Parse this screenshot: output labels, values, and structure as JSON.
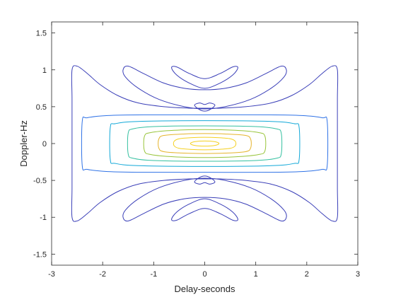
{
  "chart_data": {
    "type": "contour",
    "title": "",
    "xlabel": "Delay-seconds",
    "ylabel": "Doppler-Hz",
    "xlim": [
      -3,
      3
    ],
    "ylim": [
      -1.65,
      1.65
    ],
    "xticks": [
      -3,
      -2,
      -1,
      0,
      1,
      2,
      3
    ],
    "yticks": [
      -1.5,
      -1,
      -0.5,
      0,
      0.5,
      1,
      1.5
    ],
    "xtick_labels": [
      "-3",
      "-2",
      "-1",
      "0",
      "1",
      "2",
      "3"
    ],
    "ytick_labels": [
      "-1.5",
      "-1",
      "-0.5",
      "0",
      "0.5",
      "1",
      "1.5"
    ],
    "grid": false,
    "box": true,
    "colormap": "parula",
    "contours": [
      {
        "level": 1,
        "color": "#3a3fb8",
        "paths": [
          [
            [
              -2.6,
              1.0
            ],
            [
              -2.5,
              1.05
            ],
            [
              -2.3,
              0.95
            ],
            [
              -2.05,
              0.8
            ],
            [
              -1.7,
              0.65
            ],
            [
              -1.3,
              0.55
            ],
            [
              -0.8,
              0.5
            ],
            [
              -0.3,
              0.48
            ],
            [
              0,
              0.48
            ],
            [
              0.3,
              0.48
            ],
            [
              0.8,
              0.5
            ],
            [
              1.3,
              0.55
            ],
            [
              1.7,
              0.65
            ],
            [
              2.05,
              0.8
            ],
            [
              2.3,
              0.95
            ],
            [
              2.5,
              1.05
            ],
            [
              2.6,
              1.0
            ],
            [
              2.6,
              0.6
            ],
            [
              2.6,
              0
            ],
            [
              2.6,
              -0.6
            ],
            [
              2.6,
              -1.0
            ],
            [
              2.5,
              -1.05
            ],
            [
              2.3,
              -0.95
            ],
            [
              2.05,
              -0.8
            ],
            [
              1.7,
              -0.65
            ],
            [
              1.3,
              -0.55
            ],
            [
              0.8,
              -0.5
            ],
            [
              0.3,
              -0.48
            ],
            [
              0,
              -0.48
            ],
            [
              -0.3,
              -0.48
            ],
            [
              -0.8,
              -0.5
            ],
            [
              -1.3,
              -0.55
            ],
            [
              -1.7,
              -0.65
            ],
            [
              -2.05,
              -0.8
            ],
            [
              -2.3,
              -0.95
            ],
            [
              -2.5,
              -1.05
            ],
            [
              -2.6,
              -1.0
            ],
            [
              -2.6,
              -0.6
            ],
            [
              -2.6,
              0
            ],
            [
              -2.6,
              0.6
            ],
            [
              -2.6,
              1.0
            ]
          ],
          [
            [
              -1.6,
              1.0
            ],
            [
              -1.5,
              1.05
            ],
            [
              -1.2,
              0.95
            ],
            [
              -0.8,
              0.82
            ],
            [
              -0.4,
              0.75
            ],
            [
              0,
              0.73
            ],
            [
              0.4,
              0.75
            ],
            [
              0.8,
              0.82
            ],
            [
              1.2,
              0.95
            ],
            [
              1.5,
              1.05
            ],
            [
              1.6,
              1.0
            ],
            [
              1.55,
              0.9
            ],
            [
              1.3,
              0.75
            ],
            [
              0.9,
              0.6
            ],
            [
              0.4,
              0.5
            ],
            [
              0,
              0.47
            ],
            [
              -0.4,
              0.5
            ],
            [
              -0.9,
              0.6
            ],
            [
              -1.3,
              0.75
            ],
            [
              -1.55,
              0.9
            ],
            [
              -1.6,
              1.0
            ]
          ],
          [
            [
              -1.6,
              -1.0
            ],
            [
              -1.5,
              -1.05
            ],
            [
              -1.2,
              -0.95
            ],
            [
              -0.8,
              -0.82
            ],
            [
              -0.4,
              -0.75
            ],
            [
              0,
              -0.73
            ],
            [
              0.4,
              -0.75
            ],
            [
              0.8,
              -0.82
            ],
            [
              1.2,
              -0.95
            ],
            [
              1.5,
              -1.05
            ],
            [
              1.6,
              -1.0
            ],
            [
              1.55,
              -0.9
            ],
            [
              1.3,
              -0.75
            ],
            [
              0.9,
              -0.6
            ],
            [
              0.4,
              -0.5
            ],
            [
              0,
              -0.47
            ],
            [
              -0.4,
              -0.5
            ],
            [
              -0.9,
              -0.6
            ],
            [
              -1.3,
              -0.75
            ],
            [
              -1.55,
              -0.9
            ],
            [
              -1.6,
              -1.0
            ]
          ],
          [
            [
              -0.65,
              1.03
            ],
            [
              -0.55,
              1.04
            ],
            [
              -0.3,
              0.95
            ],
            [
              0,
              0.88
            ],
            [
              0.3,
              0.95
            ],
            [
              0.55,
              1.04
            ],
            [
              0.65,
              1.03
            ],
            [
              0.55,
              0.93
            ],
            [
              0.3,
              0.82
            ],
            [
              0,
              0.75
            ],
            [
              -0.3,
              0.82
            ],
            [
              -0.55,
              0.93
            ],
            [
              -0.65,
              1.03
            ]
          ],
          [
            [
              -0.65,
              -1.03
            ],
            [
              -0.55,
              -1.04
            ],
            [
              -0.3,
              -0.95
            ],
            [
              0,
              -0.88
            ],
            [
              0.3,
              -0.95
            ],
            [
              0.55,
              -1.04
            ],
            [
              0.65,
              -1.03
            ],
            [
              0.55,
              -0.93
            ],
            [
              0.3,
              -0.82
            ],
            [
              0,
              -0.75
            ],
            [
              -0.3,
              -0.82
            ],
            [
              -0.55,
              -0.93
            ],
            [
              -0.65,
              -1.03
            ]
          ],
          [
            [
              -0.2,
              0.52
            ],
            [
              -0.1,
              0.55
            ],
            [
              0,
              0.53
            ],
            [
              0.1,
              0.55
            ],
            [
              0.2,
              0.52
            ],
            [
              0.1,
              0.46
            ],
            [
              0,
              0.44
            ],
            [
              -0.1,
              0.46
            ],
            [
              -0.2,
              0.52
            ]
          ],
          [
            [
              -0.2,
              -0.52
            ],
            [
              -0.1,
              -0.55
            ],
            [
              0,
              -0.53
            ],
            [
              0.1,
              -0.55
            ],
            [
              0.2,
              -0.52
            ],
            [
              0.1,
              -0.46
            ],
            [
              0,
              -0.44
            ],
            [
              -0.1,
              -0.46
            ],
            [
              -0.2,
              -0.52
            ]
          ]
        ]
      },
      {
        "level": 2,
        "color": "#2f72e6",
        "paths": [
          [
            [
              -2.4,
              0.3
            ],
            [
              -2.3,
              0.35
            ],
            [
              -1.9,
              0.38
            ],
            [
              -1.2,
              0.39
            ],
            [
              0,
              0.39
            ],
            [
              1.2,
              0.39
            ],
            [
              1.9,
              0.38
            ],
            [
              2.3,
              0.35
            ],
            [
              2.4,
              0.3
            ],
            [
              2.4,
              -0.3
            ],
            [
              2.3,
              -0.35
            ],
            [
              1.9,
              -0.38
            ],
            [
              1.2,
              -0.39
            ],
            [
              0,
              -0.39
            ],
            [
              -1.2,
              -0.39
            ],
            [
              -1.9,
              -0.38
            ],
            [
              -2.3,
              -0.35
            ],
            [
              -2.4,
              -0.3
            ],
            [
              -2.4,
              0.3
            ]
          ]
        ]
      },
      {
        "level": 3,
        "color": "#12a8d8",
        "paths": [
          [
            [
              -1.85,
              0.22
            ],
            [
              -1.75,
              0.27
            ],
            [
              -1.3,
              0.3
            ],
            [
              0,
              0.31
            ],
            [
              1.3,
              0.3
            ],
            [
              1.75,
              0.27
            ],
            [
              1.85,
              0.22
            ],
            [
              1.85,
              -0.22
            ],
            [
              1.75,
              -0.27
            ],
            [
              1.3,
              -0.3
            ],
            [
              0,
              -0.31
            ],
            [
              -1.3,
              -0.3
            ],
            [
              -1.75,
              -0.27
            ],
            [
              -1.85,
              -0.22
            ],
            [
              -1.85,
              0.22
            ]
          ]
        ]
      },
      {
        "level": 4,
        "color": "#35c0a0",
        "paths": [
          [
            [
              -1.5,
              0.14
            ],
            [
              -1.4,
              0.2
            ],
            [
              -1.0,
              0.23
            ],
            [
              0,
              0.24
            ],
            [
              1.0,
              0.23
            ],
            [
              1.4,
              0.2
            ],
            [
              1.5,
              0.14
            ],
            [
              1.5,
              -0.14
            ],
            [
              1.4,
              -0.2
            ],
            [
              1.0,
              -0.23
            ],
            [
              0,
              -0.24
            ],
            [
              -1.0,
              -0.23
            ],
            [
              -1.4,
              -0.2
            ],
            [
              -1.5,
              -0.14
            ],
            [
              -1.5,
              0.14
            ]
          ]
        ]
      },
      {
        "level": 5,
        "color": "#98c43a",
        "paths": [
          [
            [
              -1.18,
              0.1
            ],
            [
              -1.05,
              0.15
            ],
            [
              -0.6,
              0.18
            ],
            [
              0,
              0.19
            ],
            [
              0.6,
              0.18
            ],
            [
              1.05,
              0.15
            ],
            [
              1.18,
              0.1
            ],
            [
              1.18,
              -0.1
            ],
            [
              1.05,
              -0.15
            ],
            [
              0.6,
              -0.18
            ],
            [
              0,
              -0.19
            ],
            [
              -0.6,
              -0.18
            ],
            [
              -1.05,
              -0.15
            ],
            [
              -1.18,
              -0.1
            ],
            [
              -1.18,
              0.1
            ]
          ]
        ]
      },
      {
        "level": 6,
        "color": "#e5b42c",
        "paths": [
          [
            [
              -0.9,
              0.06
            ],
            [
              -0.8,
              0.11
            ],
            [
              -0.4,
              0.13
            ],
            [
              0,
              0.135
            ],
            [
              0.4,
              0.13
            ],
            [
              0.8,
              0.11
            ],
            [
              0.9,
              0.06
            ],
            [
              0.9,
              -0.06
            ],
            [
              0.8,
              -0.11
            ],
            [
              0.4,
              -0.13
            ],
            [
              0,
              -0.135
            ],
            [
              -0.4,
              -0.13
            ],
            [
              -0.8,
              -0.11
            ],
            [
              -0.9,
              -0.06
            ],
            [
              -0.9,
              0.06
            ]
          ]
        ]
      },
      {
        "level": 7,
        "color": "#f4d020",
        "paths": [
          [
            [
              -0.6,
              0.03
            ],
            [
              -0.5,
              0.065
            ],
            [
              -0.25,
              0.08
            ],
            [
              0,
              0.085
            ],
            [
              0.25,
              0.08
            ],
            [
              0.5,
              0.065
            ],
            [
              0.6,
              0.03
            ],
            [
              0.6,
              -0.03
            ],
            [
              0.5,
              -0.065
            ],
            [
              0.25,
              -0.08
            ],
            [
              0,
              -0.085
            ],
            [
              -0.25,
              -0.08
            ],
            [
              -0.5,
              -0.065
            ],
            [
              -0.6,
              -0.03
            ],
            [
              -0.6,
              0.03
            ]
          ],
          [
            [
              -0.28,
              0.0
            ],
            [
              -0.2,
              0.025
            ],
            [
              0,
              0.035
            ],
            [
              0.2,
              0.025
            ],
            [
              0.28,
              0.0
            ],
            [
              0.2,
              -0.025
            ],
            [
              0,
              -0.035
            ],
            [
              -0.2,
              -0.025
            ],
            [
              -0.28,
              0.0
            ]
          ]
        ]
      }
    ]
  }
}
